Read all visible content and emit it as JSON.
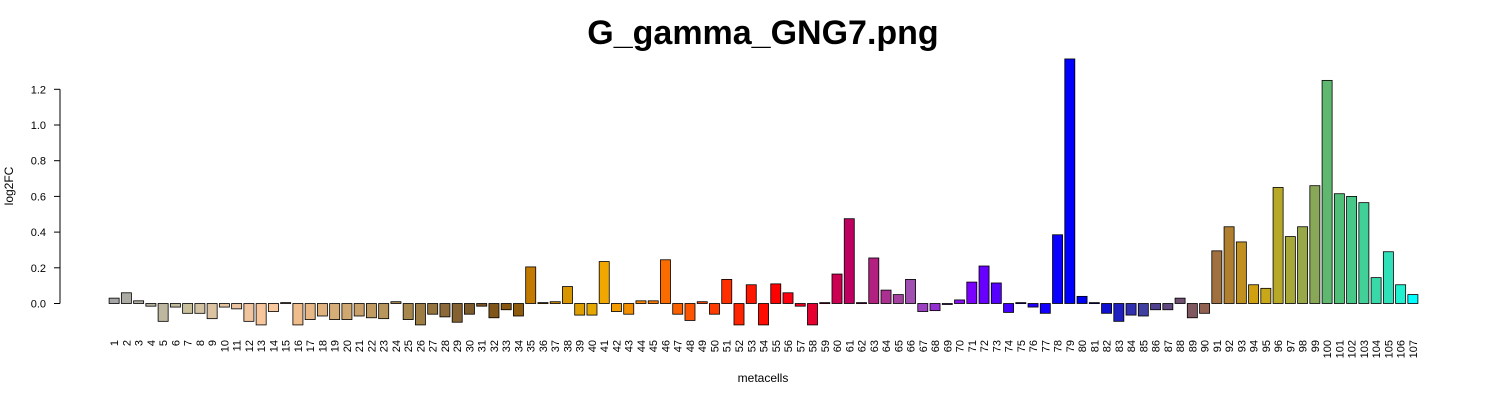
{
  "chart_data": {
    "type": "bar",
    "title": "G_gamma_GNG7.png",
    "xlabel": "metacells",
    "ylabel": "log2FC",
    "ylim": [
      -0.13,
      1.38
    ],
    "yticks": [
      0.0,
      0.2,
      0.4,
      0.6,
      0.8,
      1.0,
      1.2
    ],
    "ytick_labels": [
      "0.0",
      "0.2",
      "0.4",
      "0.6",
      "0.8",
      "1.0",
      "1.2"
    ],
    "grid": false,
    "legend": "none",
    "categories": [
      "1",
      "2",
      "3",
      "4",
      "5",
      "6",
      "7",
      "8",
      "9",
      "10",
      "11",
      "12",
      "13",
      "14",
      "15",
      "16",
      "17",
      "18",
      "19",
      "20",
      "21",
      "22",
      "23",
      "24",
      "25",
      "26",
      "27",
      "28",
      "29",
      "30",
      "31",
      "32",
      "33",
      "34",
      "35",
      "36",
      "37",
      "38",
      "39",
      "40",
      "41",
      "42",
      "43",
      "44",
      "45",
      "46",
      "47",
      "48",
      "49",
      "50",
      "51",
      "52",
      "53",
      "54",
      "55",
      "56",
      "57",
      "58",
      "59",
      "60",
      "61",
      "62",
      "63",
      "64",
      "65",
      "66",
      "67",
      "68",
      "69",
      "70",
      "71",
      "72",
      "73",
      "74",
      "75",
      "76",
      "77",
      "78",
      "79",
      "80",
      "81",
      "82",
      "83",
      "84",
      "85",
      "86",
      "87",
      "88",
      "89",
      "90",
      "91",
      "92",
      "93",
      "94",
      "95",
      "96",
      "97",
      "98",
      "99",
      "100",
      "101",
      "102",
      "103",
      "104",
      "105",
      "106",
      "107"
    ],
    "values": [
      0.03,
      0.06,
      0.015,
      -0.015,
      -0.1,
      -0.02,
      -0.055,
      -0.055,
      -0.085,
      -0.02,
      -0.03,
      -0.1,
      -0.12,
      -0.045,
      0.005,
      -0.12,
      -0.09,
      -0.07,
      -0.09,
      -0.09,
      -0.07,
      -0.08,
      -0.085,
      0.01,
      -0.09,
      -0.12,
      -0.06,
      -0.075,
      -0.105,
      -0.06,
      -0.015,
      -0.08,
      -0.035,
      -0.07,
      0.205,
      0.005,
      0.01,
      0.095,
      -0.065,
      -0.065,
      0.235,
      -0.045,
      -0.06,
      0.015,
      0.015,
      0.245,
      -0.06,
      -0.095,
      0.01,
      -0.06,
      0.135,
      -0.12,
      0.105,
      -0.12,
      0.11,
      0.06,
      -0.015,
      -0.12,
      0.005,
      0.165,
      0.475,
      0.005,
      0.255,
      0.075,
      0.05,
      0.135,
      -0.045,
      -0.04,
      0.0,
      0.02,
      0.12,
      0.21,
      0.115,
      -0.05,
      0.005,
      -0.02,
      -0.055,
      0.385,
      1.37,
      0.04,
      0.005,
      -0.055,
      -0.1,
      -0.065,
      -0.07,
      -0.035,
      -0.035,
      0.03,
      -0.08,
      -0.055,
      0.295,
      0.43,
      0.345,
      0.105,
      0.085,
      0.65,
      0.375,
      0.43,
      0.66,
      1.25,
      0.615,
      0.6,
      0.565,
      0.145,
      0.29,
      0.105,
      0.05
    ],
    "colors": [
      "#A5A5A5",
      "#ABAAA3",
      "#B0AEA2",
      "#B6B3A0",
      "#BCB79E",
      "#C1BC9C",
      "#C7C09B",
      "#D3C2A1",
      "#DCC3A1",
      "#E3C3A0",
      "#EAC4A0",
      "#F0C49E",
      "#F7C69D",
      "#F9C89C",
      "#F6C293",
      "#EFBD8C",
      "#E7B885",
      "#DFB27E",
      "#D7AD77",
      "#CFA770",
      "#C7A169",
      "#BF9B62",
      "#B7955B",
      "#AF8E54",
      "#A7874C",
      "#9E7D45",
      "#95733F",
      "#8C6938",
      "#856131",
      "#7D5A2A",
      "#7E5522",
      "#805519",
      "#875712",
      "#8E5A0D",
      "#C27A00",
      "#C98300",
      "#D08C00",
      "#D79500",
      "#DE9E00",
      "#E5A700",
      "#F0A800",
      "#F29C00",
      "#F49000",
      "#F68400",
      "#F87800",
      "#FA6C00",
      "#FB6000",
      "#FC5400",
      "#FD4800",
      "#FE3C00",
      "#FF3000",
      "#FF2400",
      "#FF1800",
      "#FF0C00",
      "#FF0000",
      "#FF0010",
      "#F20020",
      "#E50030",
      "#D80040",
      "#CB0050",
      "#BE0060",
      "#B81070",
      "#B22080",
      "#AC3090",
      "#A640A0",
      "#A050B0",
      "#9A40C0",
      "#9430D0",
      "#8E20E0",
      "#8810F0",
      "#7A00FF",
      "#6800FF",
      "#5600FF",
      "#4400FF",
      "#3200FF",
      "#2000FF",
      "#1400FF",
      "#0A00FF",
      "#0000FF",
      "#0000F0",
      "#0010E0",
      "#1010D0",
      "#2020C0",
      "#3030B0",
      "#4040A0",
      "#504090",
      "#604880",
      "#705070",
      "#805860",
      "#906050",
      "#A07040",
      "#B08030",
      "#C09020",
      "#D0A010",
      "#C8A818",
      "#B8A828",
      "#A8A838",
      "#98A848",
      "#88A858",
      "#60B870",
      "#50C078",
      "#48C888",
      "#40D098",
      "#38D8A8",
      "#30E0B8",
      "#20F0D0",
      "#00FFFF"
    ]
  }
}
